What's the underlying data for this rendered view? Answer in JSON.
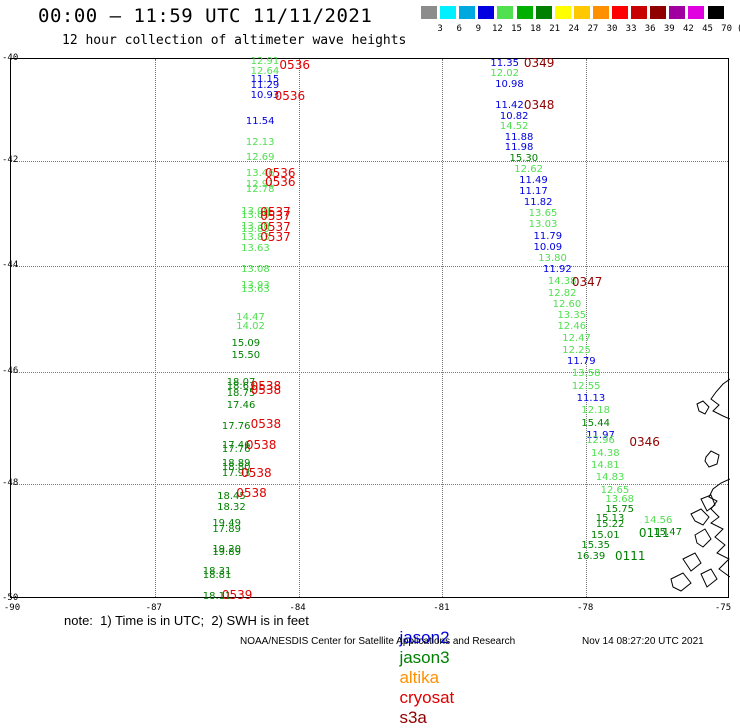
{
  "header": {
    "title": "00:00 – 11:59 UTC 11/11/2021",
    "subtitle": "12 hour collection of altimeter wave heights"
  },
  "color_scale": {
    "labels": [
      "3",
      "6",
      "9",
      "12",
      "15",
      "18",
      "21",
      "24",
      "27",
      "30",
      "33",
      "36",
      "39",
      "42",
      "45",
      "70",
      "(ft)"
    ],
    "colors": [
      "#8c8c8c",
      "#00f0ff",
      "#00a8e0",
      "#0000e0",
      "#50e050",
      "#00b000",
      "#008000",
      "#ffff00",
      "#ffc800",
      "#ff9000",
      "#ff0000",
      "#c80000",
      "#900000",
      "#a000a0",
      "#e000e0",
      "#000000"
    ]
  },
  "chart_data": {
    "type": "scatter",
    "title": "00:00 – 11:59 UTC 11/11/2021",
    "subtitle": "12 hour collection of altimeter wave heights",
    "x_range": [
      -90,
      -75
    ],
    "y_range": [
      -50,
      -40
    ],
    "x_ticks": [
      "-90",
      "-87",
      "-84",
      "-81",
      "-78",
      "-75"
    ],
    "y_ticks": [
      "-40",
      "-42",
      "-44",
      "-46",
      "-48",
      "-50"
    ],
    "grid": true,
    "units": "ft",
    "wave_heights": [
      {
        "x": -85.0,
        "y": -40.05,
        "v": "12.91",
        "c": "#50e050"
      },
      {
        "x": -85.0,
        "y": -40.25,
        "v": "12.64",
        "c": "#50e050"
      },
      {
        "x": -85.0,
        "y": -40.42,
        "v": "11.15",
        "c": "#0000e0"
      },
      {
        "x": -85.0,
        "y": -40.52,
        "v": "11.29",
        "c": "#0000e0"
      },
      {
        "x": -85.0,
        "y": -40.72,
        "v": "10.93",
        "c": "#0000e0"
      },
      {
        "x": -85.1,
        "y": -41.23,
        "v": "11.54",
        "c": "#0000e0"
      },
      {
        "x": -85.1,
        "y": -41.64,
        "v": "12.13",
        "c": "#50e050"
      },
      {
        "x": -85.1,
        "y": -41.94,
        "v": "12.69",
        "c": "#50e050"
      },
      {
        "x": -85.1,
        "y": -42.25,
        "v": "13.46",
        "c": "#50e050"
      },
      {
        "x": -85.1,
        "y": -42.45,
        "v": "12.91",
        "c": "#50e050"
      },
      {
        "x": -85.1,
        "y": -42.55,
        "v": "12.78",
        "c": "#50e050"
      },
      {
        "x": -85.2,
        "y": -42.98,
        "v": "13.09",
        "c": "#50e050"
      },
      {
        "x": -85.2,
        "y": -43.05,
        "v": "13.09",
        "c": "#50e050"
      },
      {
        "x": -85.2,
        "y": -43.25,
        "v": "13.39",
        "c": "#50e050"
      },
      {
        "x": -85.2,
        "y": -43.32,
        "v": "13.89",
        "c": "#50e050"
      },
      {
        "x": -85.2,
        "y": -43.47,
        "v": "13.83",
        "c": "#50e050"
      },
      {
        "x": -85.2,
        "y": -43.67,
        "v": "13.63",
        "c": "#50e050"
      },
      {
        "x": -85.2,
        "y": -44.08,
        "v": "13.08",
        "c": "#50e050"
      },
      {
        "x": -85.2,
        "y": -44.37,
        "v": "13.93",
        "c": "#50e050"
      },
      {
        "x": -85.2,
        "y": -44.45,
        "v": "13.63",
        "c": "#50e050"
      },
      {
        "x": -85.3,
        "y": -44.99,
        "v": "14.47",
        "c": "#50e050"
      },
      {
        "x": -85.3,
        "y": -45.16,
        "v": "14.02",
        "c": "#50e050"
      },
      {
        "x": -85.4,
        "y": -45.47,
        "v": "15.09",
        "c": "#008000"
      },
      {
        "x": -85.4,
        "y": -45.7,
        "v": "15.50",
        "c": "#008000"
      },
      {
        "x": -85.5,
        "y": -46.2,
        "v": "18.07",
        "c": "#008000"
      },
      {
        "x": -85.5,
        "y": -46.27,
        "v": "18.63",
        "c": "#008000"
      },
      {
        "x": -85.5,
        "y": -46.4,
        "v": "18.75",
        "c": "#008000"
      },
      {
        "x": -85.5,
        "y": -46.6,
        "v": "17.46",
        "c": "#008000"
      },
      {
        "x": -85.6,
        "y": -46.99,
        "v": "17.76",
        "c": "#008000"
      },
      {
        "x": -85.6,
        "y": -47.33,
        "v": "17.46",
        "c": "#008000"
      },
      {
        "x": -85.6,
        "y": -47.4,
        "v": "17.76",
        "c": "#008000"
      },
      {
        "x": -85.6,
        "y": -47.65,
        "v": "18.89",
        "c": "#008000"
      },
      {
        "x": -85.6,
        "y": -47.72,
        "v": "18.80",
        "c": "#008000"
      },
      {
        "x": -85.6,
        "y": -47.82,
        "v": "17.93",
        "c": "#008000"
      },
      {
        "x": -85.7,
        "y": -48.22,
        "v": "18.45",
        "c": "#008000"
      },
      {
        "x": -85.7,
        "y": -48.42,
        "v": "18.32",
        "c": "#008000"
      },
      {
        "x": -85.8,
        "y": -48.7,
        "v": "19.49",
        "c": "#008000"
      },
      {
        "x": -85.8,
        "y": -48.8,
        "v": "17.89",
        "c": "#008000"
      },
      {
        "x": -85.8,
        "y": -49.15,
        "v": "19.20",
        "c": "#008000"
      },
      {
        "x": -85.8,
        "y": -49.2,
        "v": "19.89",
        "c": "#008000"
      },
      {
        "x": -86.0,
        "y": -49.53,
        "v": "18.31",
        "c": "#008000"
      },
      {
        "x": -86.0,
        "y": -49.6,
        "v": "18.81",
        "c": "#008000"
      },
      {
        "x": -86.0,
        "y": -49.96,
        "v": "18.11",
        "c": "#008000"
      },
      {
        "x": -80.0,
        "y": -40.09,
        "v": "11.35",
        "c": "#0000e0"
      },
      {
        "x": -80.0,
        "y": -40.29,
        "v": "12.02",
        "c": "#50e050"
      },
      {
        "x": -79.9,
        "y": -40.5,
        "v": "10.98",
        "c": "#0000e0"
      },
      {
        "x": -79.9,
        "y": -40.93,
        "v": "11.42",
        "c": "#0000e0"
      },
      {
        "x": -79.8,
        "y": -41.14,
        "v": "10.82",
        "c": "#0000e0"
      },
      {
        "x": -79.8,
        "y": -41.34,
        "v": "14.52",
        "c": "#50e050"
      },
      {
        "x": -79.7,
        "y": -41.55,
        "v": "11.88",
        "c": "#0000e0"
      },
      {
        "x": -79.7,
        "y": -41.75,
        "v": "11.98",
        "c": "#0000e0"
      },
      {
        "x": -79.6,
        "y": -41.96,
        "v": "15.30",
        "c": "#008000"
      },
      {
        "x": -79.5,
        "y": -42.18,
        "v": "12.62",
        "c": "#50e050"
      },
      {
        "x": -79.4,
        "y": -42.38,
        "v": "11.49",
        "c": "#0000e0"
      },
      {
        "x": -79.4,
        "y": -42.59,
        "v": "11.17",
        "c": "#0000e0"
      },
      {
        "x": -79.3,
        "y": -42.8,
        "v": "11.82",
        "c": "#0000e0"
      },
      {
        "x": -79.2,
        "y": -43.01,
        "v": "13.65",
        "c": "#50e050"
      },
      {
        "x": -79.2,
        "y": -43.21,
        "v": "13.03",
        "c": "#50e050"
      },
      {
        "x": -79.1,
        "y": -43.45,
        "v": "11.79",
        "c": "#0000e0"
      },
      {
        "x": -79.1,
        "y": -43.65,
        "v": "10.09",
        "c": "#0000e0"
      },
      {
        "x": -79.0,
        "y": -43.87,
        "v": "13.80",
        "c": "#50e050"
      },
      {
        "x": -78.9,
        "y": -44.07,
        "v": "11.92",
        "c": "#0000e0"
      },
      {
        "x": -78.8,
        "y": -44.3,
        "v": "14.38",
        "c": "#50e050"
      },
      {
        "x": -78.8,
        "y": -44.52,
        "v": "12.82",
        "c": "#50e050"
      },
      {
        "x": -78.7,
        "y": -44.74,
        "v": "12.60",
        "c": "#50e050"
      },
      {
        "x": -78.6,
        "y": -44.95,
        "v": "13.35",
        "c": "#50e050"
      },
      {
        "x": -78.6,
        "y": -45.16,
        "v": "12.46",
        "c": "#50e050"
      },
      {
        "x": -78.5,
        "y": -45.38,
        "v": "12.47",
        "c": "#50e050"
      },
      {
        "x": -78.5,
        "y": -45.6,
        "v": "12.25",
        "c": "#50e050"
      },
      {
        "x": -78.4,
        "y": -45.82,
        "v": "11.79",
        "c": "#0000e0"
      },
      {
        "x": -78.3,
        "y": -46.04,
        "v": "13.58",
        "c": "#50e050"
      },
      {
        "x": -78.3,
        "y": -46.26,
        "v": "12.55",
        "c": "#50e050"
      },
      {
        "x": -78.2,
        "y": -46.48,
        "v": "11.13",
        "c": "#0000e0"
      },
      {
        "x": -78.1,
        "y": -46.7,
        "v": "12.18",
        "c": "#50e050"
      },
      {
        "x": -78.1,
        "y": -46.92,
        "v": "15.44",
        "c": "#008000"
      },
      {
        "x": -78.0,
        "y": -47.14,
        "v": "11.97",
        "c": "#0000e0"
      },
      {
        "x": -78.0,
        "y": -47.24,
        "v": "12.96",
        "c": "#50e050"
      },
      {
        "x": -77.9,
        "y": -47.46,
        "v": "14.38",
        "c": "#50e050"
      },
      {
        "x": -77.9,
        "y": -47.68,
        "v": "14.81",
        "c": "#50e050"
      },
      {
        "x": -77.8,
        "y": -47.9,
        "v": "14.83",
        "c": "#50e050"
      },
      {
        "x": -77.7,
        "y": -48.12,
        "v": "12.65",
        "c": "#50e050"
      },
      {
        "x": -77.6,
        "y": -48.27,
        "v": "13.68",
        "c": "#50e050"
      },
      {
        "x": -77.6,
        "y": -48.45,
        "v": "15.75",
        "c": "#008000"
      },
      {
        "x": -77.8,
        "y": -48.6,
        "v": "15.13",
        "c": "#008000"
      },
      {
        "x": -77.8,
        "y": -48.72,
        "v": "15.22",
        "c": "#008000"
      },
      {
        "x": -77.9,
        "y": -48.9,
        "v": "15.01",
        "c": "#008000"
      },
      {
        "x": -78.1,
        "y": -49.08,
        "v": "15.35",
        "c": "#008000"
      },
      {
        "x": -78.2,
        "y": -49.27,
        "v": "16.39",
        "c": "#008000"
      },
      {
        "x": -76.8,
        "y": -48.65,
        "v": "14.56",
        "c": "#50e050"
      },
      {
        "x": -76.6,
        "y": -48.85,
        "v": "15.47",
        "c": "#008000"
      }
    ],
    "pass_ids": [
      {
        "x": -84.4,
        "y": -40.12,
        "v": "0536",
        "c": "#e00000"
      },
      {
        "x": -84.5,
        "y": -40.72,
        "v": "0536",
        "c": "#e00000"
      },
      {
        "x": -84.7,
        "y": -42.22,
        "v": "0536",
        "c": "#e00000"
      },
      {
        "x": -84.7,
        "y": -42.4,
        "v": "0536",
        "c": "#e00000"
      },
      {
        "x": -84.8,
        "y": -42.98,
        "v": "0537",
        "c": "#e00000"
      },
      {
        "x": -84.8,
        "y": -43.05,
        "v": "0537",
        "c": "#e00000"
      },
      {
        "x": -84.8,
        "y": -43.25,
        "v": "0537",
        "c": "#e00000"
      },
      {
        "x": -84.8,
        "y": -43.45,
        "v": "0537",
        "c": "#e00000"
      },
      {
        "x": -85.0,
        "y": -46.25,
        "v": "0538",
        "c": "#e00000"
      },
      {
        "x": -85.0,
        "y": -46.33,
        "v": "0538",
        "c": "#e00000"
      },
      {
        "x": -85.0,
        "y": -46.93,
        "v": "0538",
        "c": "#e00000"
      },
      {
        "x": -85.1,
        "y": -47.3,
        "v": "0538",
        "c": "#e00000"
      },
      {
        "x": -85.2,
        "y": -47.8,
        "v": "0538",
        "c": "#e00000"
      },
      {
        "x": -85.3,
        "y": -48.15,
        "v": "0538",
        "c": "#e00000"
      },
      {
        "x": -85.6,
        "y": -49.93,
        "v": "0539",
        "c": "#e00000"
      },
      {
        "x": -79.3,
        "y": -40.07,
        "v": "0349",
        "c": "#900000"
      },
      {
        "x": -79.3,
        "y": -40.9,
        "v": "0348",
        "c": "#900000"
      },
      {
        "x": -78.3,
        "y": -44.3,
        "v": "0347",
        "c": "#900000"
      },
      {
        "x": -77.1,
        "y": -47.25,
        "v": "0346",
        "c": "#900000"
      },
      {
        "x": -76.9,
        "y": -48.85,
        "v": "0111",
        "c": "#008000"
      },
      {
        "x": -77.4,
        "y": -49.26,
        "v": "0111",
        "c": "#008000"
      }
    ]
  },
  "footer": {
    "note": "note:  1) Time is in UTC;  2) SWH is in feet",
    "legend": [
      {
        "label": "jason2",
        "color": "#0000e0"
      },
      {
        "label": "jason3",
        "color": "#008000"
      },
      {
        "label": "altika",
        "color": "#ff9000"
      },
      {
        "label": "cryosat",
        "color": "#e00000"
      },
      {
        "label": "s3a",
        "color": "#900000"
      }
    ],
    "credit": "NOAA/NESDIS Center for Satellite Applications and Research",
    "timestamp": "Nov 14 08:27:20 UTC 2021"
  }
}
